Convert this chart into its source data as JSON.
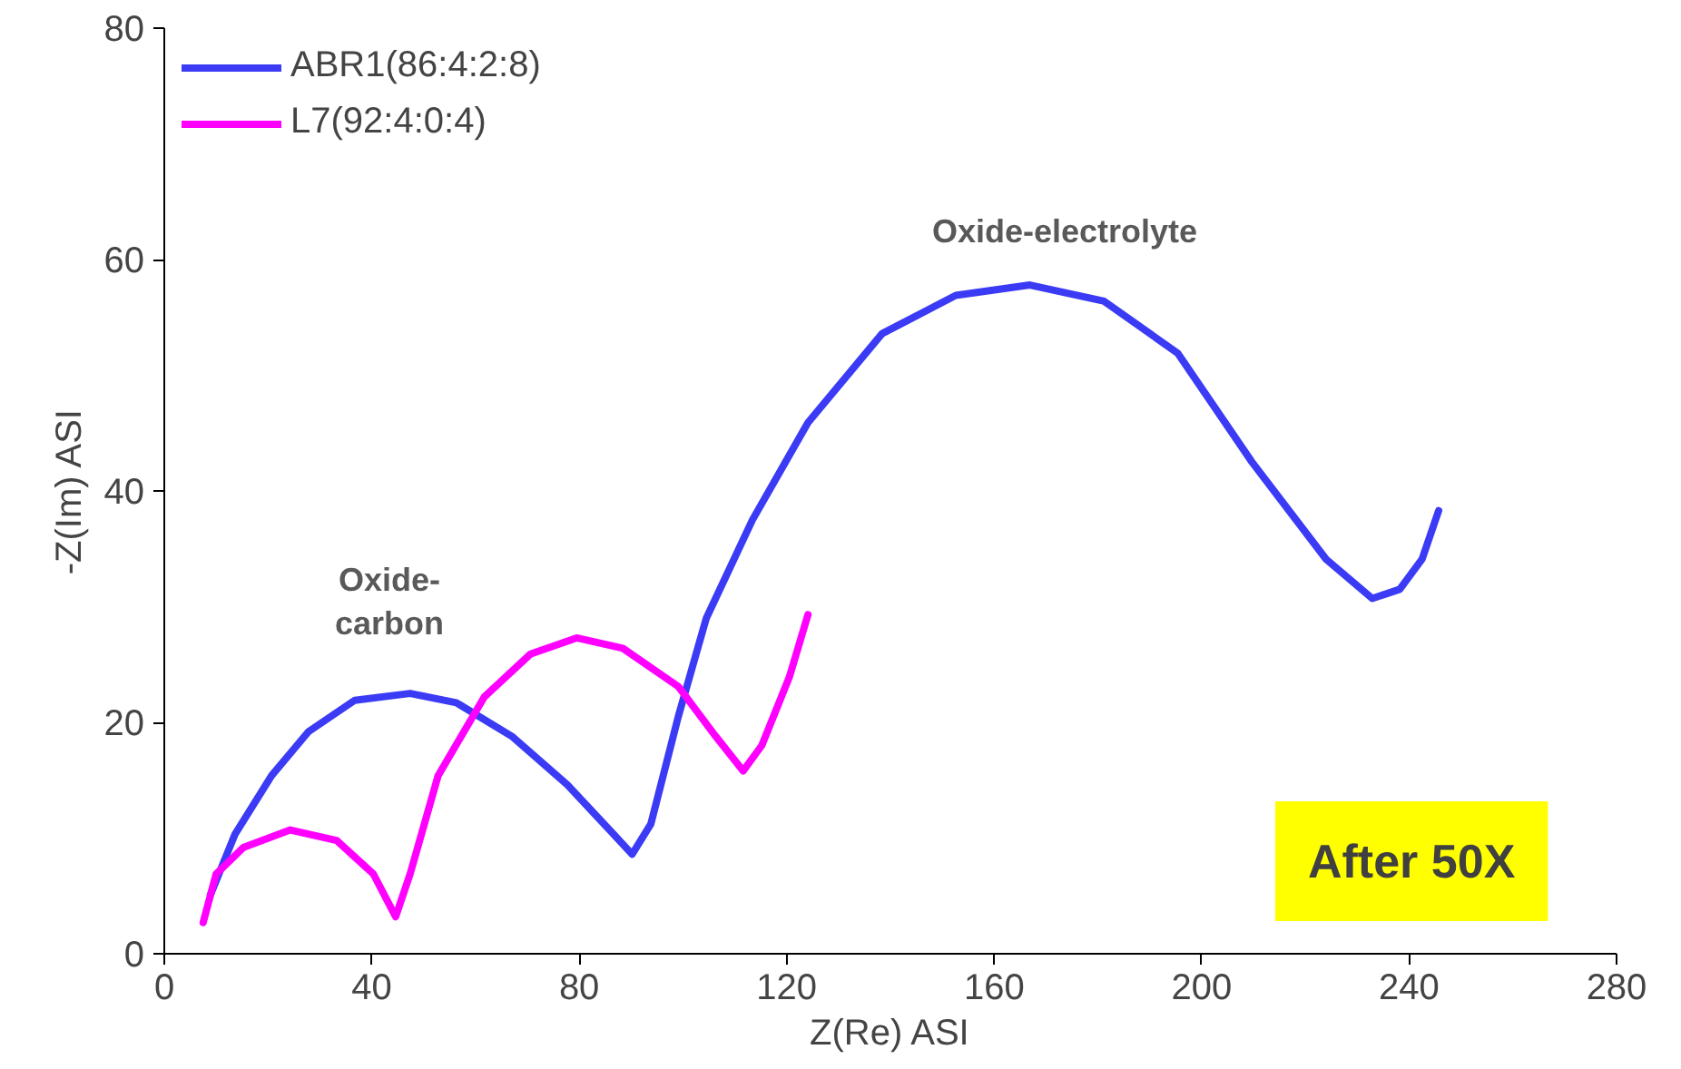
{
  "chart_data": {
    "type": "line",
    "xlabel": "Z(Re) ASI",
    "ylabel": "-Z(Im) ASI",
    "xlim": [
      0,
      280
    ],
    "ylim": [
      0,
      80
    ],
    "xticks": [
      0,
      40,
      80,
      120,
      160,
      200,
      240,
      280
    ],
    "yticks": [
      0,
      20,
      40,
      60,
      80
    ],
    "grid": false,
    "legend": "top left",
    "marker": "none",
    "line_style": "solid",
    "annotations": [
      "Oxide-electrolyte",
      "Oxide-\ncarbon",
      "After 50X"
    ],
    "series": [
      {
        "name": "ABR1(86:4:2:8)",
        "color": "#3b3bf5",
        "x": [
          8.9,
          13.6,
          20.7,
          27.8,
          36.7,
          47.4,
          56.3,
          67,
          77.7,
          86.7,
          90.2,
          93.8,
          99.1,
          104.5,
          113.4,
          124.1,
          138.4,
          152.6,
          166.9,
          181.2,
          195.4,
          209.7,
          224,
          232.9,
          238.2,
          242.5,
          245.7
        ],
        "values": [
          5.1,
          10.3,
          15.4,
          19.2,
          21.9,
          22.5,
          21.7,
          18.8,
          14.6,
          10.3,
          8.6,
          11.2,
          20.5,
          29,
          37.5,
          45.9,
          53.6,
          56.9,
          57.8,
          56.4,
          51.9,
          42.5,
          34.1,
          30.7,
          31.5,
          34.1,
          38.3
        ]
      },
      {
        "name": "L7(92:4:0:4)",
        "color": "#ff00ff",
        "x": [
          7.5,
          10,
          15.3,
          24.3,
          33.2,
          40.3,
          44.6,
          47.4,
          52.8,
          61.7,
          70.6,
          79.5,
          88.4,
          99.1,
          106.3,
          111.6,
          115.2,
          120.5,
          124.1
        ],
        "values": [
          2.7,
          6.9,
          9.2,
          10.7,
          9.8,
          6.9,
          3.2,
          6.9,
          15.4,
          22.2,
          25.9,
          27.3,
          26.4,
          23.1,
          18.8,
          15.8,
          18,
          23.9,
          29.3
        ]
      }
    ]
  }
}
